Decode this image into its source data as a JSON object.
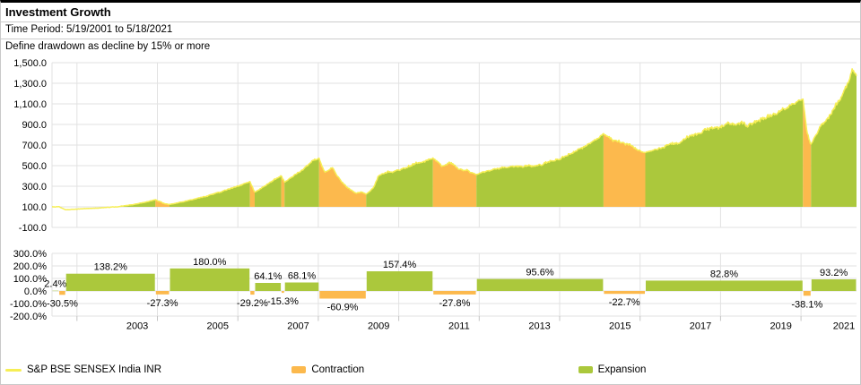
{
  "header": {
    "title": "Investment Growth",
    "time_period": "Time Period: 5/19/2001 to 5/18/2021",
    "drawdown_note": "Define drawdown as decline by 15% or more"
  },
  "colors": {
    "expansion": "#abc83c",
    "contraction": "#fcb94d",
    "index_line": "#f6ee55",
    "grid": "#e2e2e2",
    "axis": "#c4c4c4",
    "text": "#000000"
  },
  "legend": [
    {
      "label": "S&P BSE SENSEX India INR",
      "swatch": "line",
      "color_key": "index_line"
    },
    {
      "label": "Contraction",
      "swatch": "rect",
      "color_key": "contraction"
    },
    {
      "label": "Expansion",
      "swatch": "rect",
      "color_key": "expansion"
    }
  ],
  "chart_data": [
    {
      "type": "area",
      "title": "Investment Growth",
      "series_label": "S&P BSE SENSEX India INR",
      "baseline_value": 100,
      "x_axis": {
        "range": [
          2001.38,
          2021.38
        ],
        "gridline_years": [
          2002,
          2004,
          2006,
          2008,
          2010,
          2012,
          2014,
          2016,
          2018,
          2020
        ]
      },
      "y_axis": {
        "tick_labels": [
          "1,500.0",
          "1,300.0",
          "1,100.0",
          "900.0",
          "700.0",
          "500.0",
          "300.0",
          "100.0",
          "-100.0"
        ],
        "tick_values": [
          1500,
          1300,
          1100,
          900,
          700,
          500,
          300,
          100,
          -100
        ]
      },
      "segments": [
        {
          "kind": "expansion",
          "pct": 2.4,
          "t0": 2001.38,
          "t1": 2001.55,
          "v0": 100,
          "v1": 102.4,
          "waypoints": []
        },
        {
          "kind": "contraction",
          "pct": -30.5,
          "t0": 2001.55,
          "t1": 2001.72,
          "v0": 102.4,
          "v1": 71.2,
          "waypoints": [
            [
              0.5,
              85
            ]
          ]
        },
        {
          "kind": "expansion",
          "pct": 138.2,
          "t0": 2001.72,
          "t1": 2003.95,
          "v0": 71.2,
          "v1": 169.5,
          "waypoints": [
            [
              0.3,
              86
            ],
            [
              0.55,
              100
            ],
            [
              0.8,
              130
            ]
          ]
        },
        {
          "kind": "contraction",
          "pct": -27.3,
          "t0": 2003.95,
          "t1": 2004.3,
          "v0": 169.5,
          "v1": 123.3,
          "waypoints": [
            [
              0.4,
              150
            ],
            [
              0.6,
              135
            ]
          ]
        },
        {
          "kind": "expansion",
          "pct": 180.0,
          "t0": 2004.3,
          "t1": 2006.3,
          "v0": 123.3,
          "v1": 345.1,
          "waypoints": [
            [
              0.25,
              165
            ],
            [
              0.5,
              215
            ],
            [
              0.78,
              285
            ]
          ]
        },
        {
          "kind": "contraction",
          "pct": -29.2,
          "t0": 2006.3,
          "t1": 2006.42,
          "v0": 345.1,
          "v1": 244.3,
          "waypoints": []
        },
        {
          "kind": "expansion",
          "pct": 64.1,
          "t0": 2006.42,
          "t1": 2007.08,
          "v0": 244.3,
          "v1": 400.9,
          "waypoints": [
            [
              0.4,
              310
            ],
            [
              0.7,
              360
            ]
          ]
        },
        {
          "kind": "contraction",
          "pct": -15.3,
          "t0": 2007.08,
          "t1": 2007.16,
          "v0": 400.9,
          "v1": 339.6,
          "waypoints": []
        },
        {
          "kind": "expansion",
          "pct": 68.1,
          "t0": 2007.16,
          "t1": 2008.02,
          "v0": 339.6,
          "v1": 570.9,
          "waypoints": [
            [
              0.35,
              420
            ],
            [
              0.55,
              470
            ],
            [
              0.8,
              555
            ]
          ]
        },
        {
          "kind": "contraction",
          "pct": -60.9,
          "t0": 2008.02,
          "t1": 2009.19,
          "v0": 570.9,
          "v1": 223.2,
          "waypoints": [
            [
              0.12,
              440
            ],
            [
              0.28,
              480
            ],
            [
              0.45,
              370
            ],
            [
              0.62,
              280
            ],
            [
              0.78,
              228
            ],
            [
              0.9,
              242
            ]
          ]
        },
        {
          "kind": "expansion",
          "pct": 157.4,
          "t0": 2009.19,
          "t1": 2010.85,
          "v0": 223.2,
          "v1": 574.5,
          "waypoints": [
            [
              0.1,
              280
            ],
            [
              0.18,
              400
            ],
            [
              0.35,
              440
            ],
            [
              0.55,
              465
            ],
            [
              0.75,
              520
            ]
          ]
        },
        {
          "kind": "contraction",
          "pct": -27.8,
          "t0": 2010.85,
          "t1": 2011.93,
          "v0": 574.5,
          "v1": 414.8,
          "waypoints": [
            [
              0.2,
              500
            ],
            [
              0.4,
              530
            ],
            [
              0.6,
              470
            ],
            [
              0.8,
              455
            ]
          ]
        },
        {
          "kind": "expansion",
          "pct": 95.6,
          "t0": 2011.93,
          "t1": 2015.09,
          "v0": 414.8,
          "v1": 811.4,
          "waypoints": [
            [
              0.15,
              470
            ],
            [
              0.3,
              495
            ],
            [
              0.45,
              490
            ],
            [
              0.6,
              545
            ],
            [
              0.8,
              650
            ]
          ]
        },
        {
          "kind": "contraction",
          "pct": -22.7,
          "t0": 2015.09,
          "t1": 2016.13,
          "v0": 811.4,
          "v1": 627.2,
          "waypoints": [
            [
              0.25,
              745
            ],
            [
              0.5,
              715
            ],
            [
              0.75,
              672
            ]
          ]
        },
        {
          "kind": "expansion",
          "pct": 82.8,
          "t0": 2016.13,
          "t1": 2020.05,
          "v0": 627.2,
          "v1": 1146.5,
          "waypoints": [
            [
              0.15,
              700
            ],
            [
              0.3,
              800
            ],
            [
              0.45,
              870
            ],
            [
              0.55,
              910
            ],
            [
              0.65,
              885
            ],
            [
              0.8,
              1000
            ],
            [
              0.92,
              1085
            ]
          ]
        },
        {
          "kind": "contraction",
          "pct": -38.1,
          "t0": 2020.05,
          "t1": 2020.25,
          "v0": 1146.5,
          "v1": 709.7,
          "waypoints": [
            [
              0.5,
              850
            ]
          ]
        },
        {
          "kind": "expansion",
          "pct": 93.2,
          "t0": 2020.25,
          "t1": 2021.38,
          "v0": 709.7,
          "v1": 1371.1,
          "waypoints": [
            [
              0.2,
              880
            ],
            [
              0.4,
              990
            ],
            [
              0.6,
              1100
            ],
            [
              0.8,
              1260
            ],
            [
              0.9,
              1420
            ],
            [
              0.95,
              1405
            ]
          ]
        }
      ]
    },
    {
      "type": "bar",
      "title": "Expansion / contraction returns",
      "y_axis": {
        "tick_labels": [
          "300.0%",
          "200.0%",
          "100.0%",
          "0.0%",
          "-100.0%",
          "-200.0%"
        ],
        "tick_values": [
          300,
          200,
          100,
          0,
          -100,
          -200
        ]
      },
      "x_axis": {
        "tick_labels": [
          "2003",
          "2005",
          "2007",
          "2009",
          "2011",
          "2013",
          "2015",
          "2017",
          "2019",
          "2021"
        ],
        "tick_positions": [
          2003.5,
          2005.5,
          2007.5,
          2009.5,
          2011.5,
          2013.5,
          2015.5,
          2017.5,
          2019.5,
          2021.1
        ],
        "gridline_years": [
          2002,
          2004,
          2006,
          2008,
          2010,
          2012,
          2014,
          2016,
          2018,
          2020
        ]
      },
      "bars": [
        {
          "label": "2.4%",
          "value": 2.4,
          "kind": "expansion"
        },
        {
          "label": "-30.5%",
          "value": -30.5,
          "kind": "contraction"
        },
        {
          "label": "138.2%",
          "value": 138.2,
          "kind": "expansion"
        },
        {
          "label": "-27.3%",
          "value": -27.3,
          "kind": "contraction"
        },
        {
          "label": "180.0%",
          "value": 180.0,
          "kind": "expansion"
        },
        {
          "label": "-29.2%",
          "value": -29.2,
          "kind": "contraction"
        },
        {
          "label": "64.1%",
          "value": 64.1,
          "kind": "expansion"
        },
        {
          "label": "-15.3%",
          "value": -15.3,
          "kind": "contraction"
        },
        {
          "label": "68.1%",
          "value": 68.1,
          "kind": "expansion"
        },
        {
          "label": "-60.9%",
          "value": -60.9,
          "kind": "contraction"
        },
        {
          "label": "157.4%",
          "value": 157.4,
          "kind": "expansion"
        },
        {
          "label": "-27.8%",
          "value": -27.8,
          "kind": "contraction"
        },
        {
          "label": "95.6%",
          "value": 95.6,
          "kind": "expansion"
        },
        {
          "label": "-22.7%",
          "value": -22.7,
          "kind": "contraction"
        },
        {
          "label": "82.8%",
          "value": 82.8,
          "kind": "expansion"
        },
        {
          "label": "-38.1%",
          "value": -38.1,
          "kind": "contraction"
        },
        {
          "label": "93.2%",
          "value": 93.2,
          "kind": "expansion"
        }
      ]
    }
  ]
}
